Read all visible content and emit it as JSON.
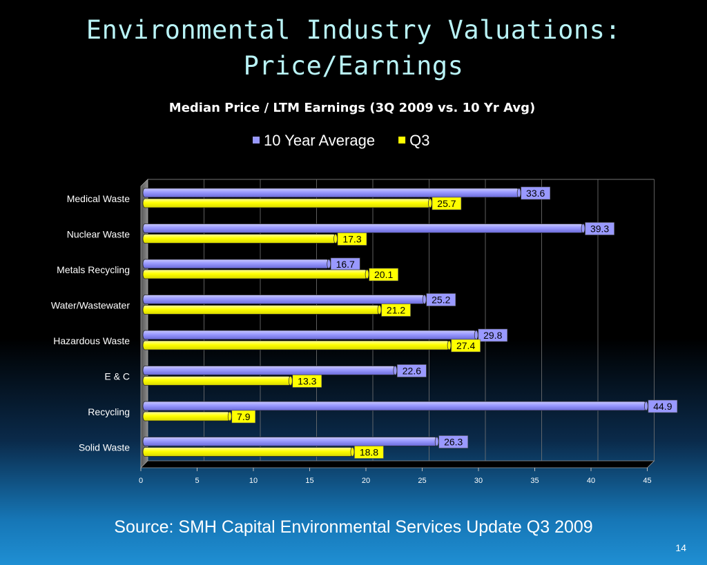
{
  "slide": {
    "title_line1": "Environmental Industry Valuations:",
    "title_line2": "Price/Earnings",
    "source": "Source: SMH Capital Environmental Services Update Q3 2009",
    "page_number": "14"
  },
  "chart_data": {
    "type": "bar",
    "orientation": "horizontal",
    "title": "Median Price / LTM Earnings (3Q 2009 vs. 10 Yr Avg)",
    "categories": [
      "Medical Waste",
      "Nuclear Waste",
      "Metals Recycling",
      "Water/Wastewater",
      "Hazardous Waste",
      "E & C",
      "Recycling",
      "Solid Waste"
    ],
    "series": [
      {
        "name": "10 Year Average",
        "color": "#9999ff",
        "values": [
          33.6,
          39.3,
          16.7,
          25.2,
          29.8,
          22.6,
          44.9,
          26.3
        ]
      },
      {
        "name": "Q3",
        "color": "#ffff00",
        "values": [
          25.7,
          17.3,
          20.1,
          21.2,
          27.4,
          13.3,
          7.9,
          18.8
        ]
      }
    ],
    "x_ticks": [
      "0",
      "5",
      "10",
      "15",
      "20",
      "25",
      "30",
      "35",
      "40",
      "45"
    ],
    "xlim": [
      0,
      45
    ],
    "legend_position": "top",
    "data_labels": true,
    "grid": true
  }
}
